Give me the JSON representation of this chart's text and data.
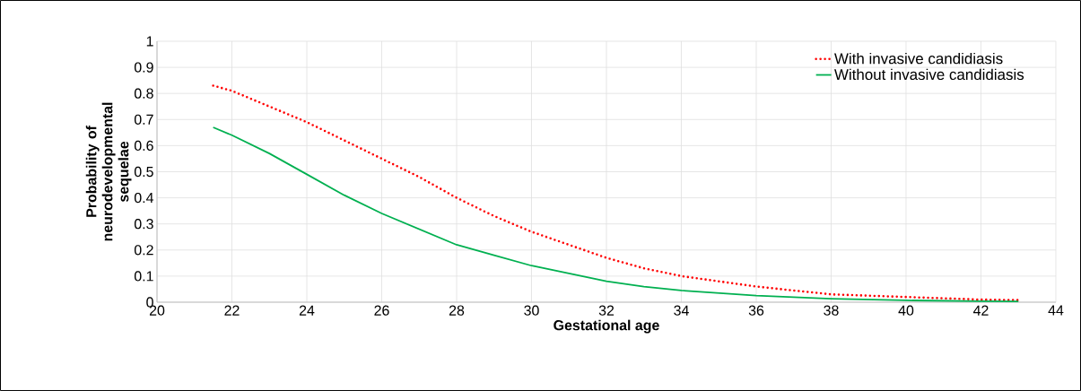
{
  "chart_data": {
    "type": "line",
    "xlabel": "Gestational age",
    "ylabel": "Probability of neurodevelopmental sequelae",
    "x": [
      21.5,
      22,
      23,
      24,
      25,
      26,
      27,
      28,
      29,
      30,
      31,
      32,
      33,
      34,
      36,
      38,
      40,
      42,
      43
    ],
    "series": [
      {
        "name": "With invasive candidiasis",
        "color": "#ff0000",
        "line_style": "dotted",
        "values": [
          0.83,
          0.81,
          0.75,
          0.69,
          0.62,
          0.55,
          0.48,
          0.4,
          0.33,
          0.27,
          0.22,
          0.17,
          0.13,
          0.1,
          0.06,
          0.03,
          0.02,
          0.01,
          0.008
        ]
      },
      {
        "name": "Without invasive candidiasis",
        "color": "#00b050",
        "line_style": "solid",
        "values": [
          0.67,
          0.64,
          0.57,
          0.49,
          0.41,
          0.34,
          0.28,
          0.22,
          0.18,
          0.14,
          0.11,
          0.08,
          0.06,
          0.045,
          0.025,
          0.013,
          0.007,
          0.004,
          0.003
        ]
      }
    ],
    "xlim": [
      20,
      44
    ],
    "xticks": [
      20,
      22,
      24,
      26,
      28,
      30,
      32,
      34,
      36,
      38,
      40,
      42,
      44
    ],
    "ylim": [
      0,
      1
    ],
    "yticks": [
      0,
      {
        "value": 0.1,
        "label": "0.1"
      },
      {
        "value": 0.2,
        "label": "0.2"
      },
      {
        "value": 0.3,
        "label": "0.3"
      },
      {
        "value": 0.4,
        "label": "0.4"
      },
      {
        "value": 0.5,
        "label": "0.5"
      },
      {
        "value": 0.6,
        "label": "0.6"
      },
      {
        "value": 0.7,
        "label": "0.7"
      },
      {
        "value": 0.8,
        "label": "0.8"
      },
      {
        "value": 0.9,
        "label": "0.9"
      },
      1
    ],
    "grid": true,
    "legend": "top right",
    "marker": "none"
  }
}
